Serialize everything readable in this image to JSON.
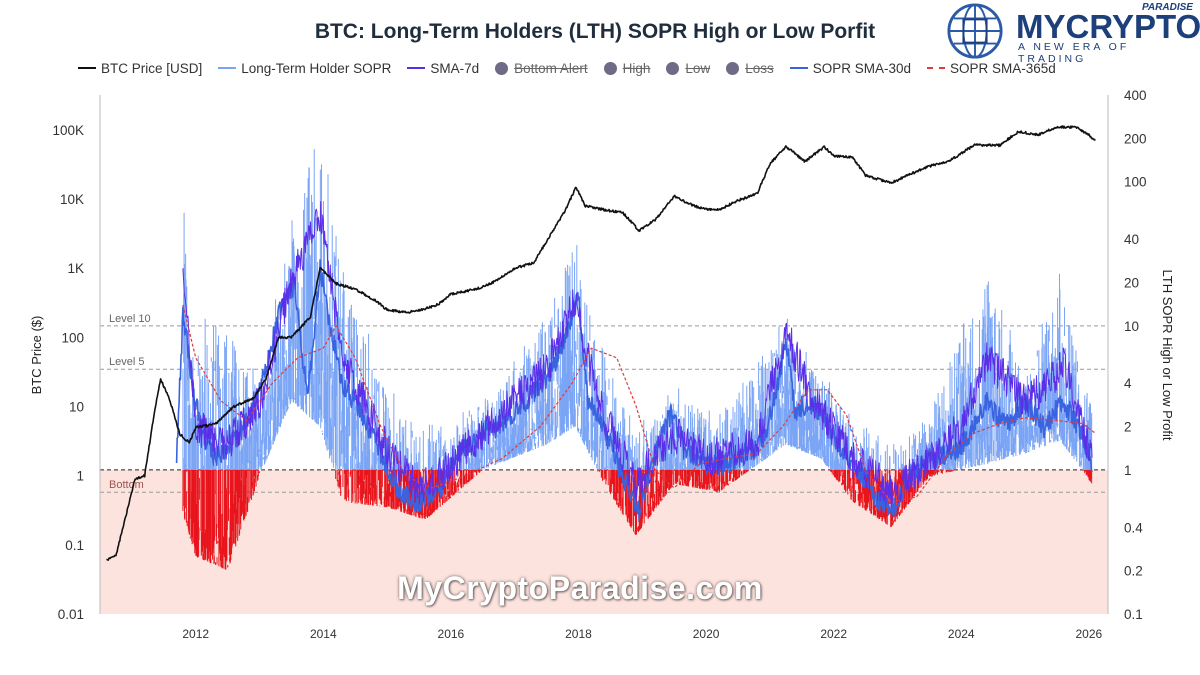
{
  "chart_data": {
    "type": "line",
    "title": "BTC: Long-Term Holders (LTH) SOPR High or Low Porfit",
    "ylabel_left": "BTC Price ($)",
    "ylabel_right": "LTH SOPR High or Low Profit",
    "y_left_scale": "log",
    "y_right_scale": "log",
    "ylim_left": [
      0.01,
      320000
    ],
    "ylim_right": [
      0.1,
      400
    ],
    "xlim": [
      2010.5,
      2026.3
    ],
    "x_ticks": [
      "2012",
      "2014",
      "2016",
      "2018",
      "2020",
      "2022",
      "2024",
      "2026"
    ],
    "y_left_ticks": [
      "0.01",
      "0.1",
      "1",
      "10",
      "100",
      "1K",
      "10K",
      "100K"
    ],
    "y_right_ticks": [
      "0.1",
      "0.2",
      "0.4",
      "1",
      "2",
      "4",
      "10",
      "20",
      "40",
      "100",
      "200",
      "400"
    ],
    "legend": [
      {
        "label": "BTC Price [USD]",
        "color": "#111111",
        "style": "solid",
        "enabled": true
      },
      {
        "label": "Long-Term Holder SOPR",
        "color": "#7aa4f5",
        "style": "solid",
        "enabled": true
      },
      {
        "label": "SMA-7d",
        "color": "#5b2ee8",
        "style": "solid",
        "enabled": true
      },
      {
        "label": "Bottom Alert",
        "color": "#6f6a86",
        "style": "dot",
        "enabled": false
      },
      {
        "label": "High",
        "color": "#6f6a86",
        "style": "dot",
        "enabled": false
      },
      {
        "label": "Low",
        "color": "#6f6a86",
        "style": "dot",
        "enabled": false
      },
      {
        "label": "Loss",
        "color": "#6f6a86",
        "style": "dot",
        "enabled": false
      },
      {
        "label": "SOPR SMA-30d",
        "color": "#3a63e0",
        "style": "solid",
        "enabled": true
      },
      {
        "label": "SOPR SMA-365d",
        "color": "#e23b3b",
        "style": "dashed",
        "enabled": true
      }
    ],
    "reference_lines": [
      {
        "label": "Level 10",
        "value": 10
      },
      {
        "label": "Level 5",
        "value": 5
      },
      {
        "label": "",
        "value": 1
      },
      {
        "label": "Bottom",
        "value": 0.7
      }
    ],
    "loss_zone": {
      "from": 0.1,
      "to": 1,
      "color": "#fde3de"
    },
    "series": [
      {
        "name": "BTC Price [USD]",
        "axis": "left",
        "x": [
          2010.6,
          2010.75,
          2010.9,
          2011.05,
          2011.2,
          2011.35,
          2011.45,
          2011.6,
          2011.75,
          2011.9,
          2012.0,
          2012.3,
          2012.6,
          2012.9,
          2013.1,
          2013.3,
          2013.5,
          2013.8,
          2013.95,
          2014.2,
          2014.5,
          2014.8,
          2015.0,
          2015.3,
          2015.6,
          2015.8,
          2016.0,
          2016.4,
          2016.7,
          2017.0,
          2017.3,
          2017.6,
          2017.8,
          2017.96,
          2018.1,
          2018.4,
          2018.7,
          2018.95,
          2019.2,
          2019.5,
          2019.8,
          2020.0,
          2020.2,
          2020.5,
          2020.8,
          2021.0,
          2021.25,
          2021.55,
          2021.85,
          2022.0,
          2022.3,
          2022.5,
          2022.9,
          2023.2,
          2023.5,
          2023.8,
          2024.2,
          2024.6,
          2024.9,
          2025.2,
          2025.5,
          2025.8,
          2026.0,
          2026.1
        ],
        "y": [
          0.06,
          0.07,
          0.25,
          0.9,
          1,
          8,
          25,
          12,
          4,
          3,
          5,
          5.5,
          10,
          13,
          25,
          100,
          100,
          200,
          1000,
          600,
          500,
          350,
          250,
          230,
          260,
          300,
          420,
          500,
          650,
          1000,
          1200,
          3500,
          7000,
          15000,
          8000,
          7000,
          6300,
          3500,
          5000,
          11000,
          8000,
          7200,
          7000,
          9500,
          12000,
          32000,
          58000,
          35000,
          57000,
          42000,
          40000,
          22000,
          17000,
          23000,
          30000,
          35000,
          60000,
          60000,
          95000,
          85000,
          110000,
          110000,
          85000,
          70000
        ]
      },
      {
        "name": "SOPR SMA-365d",
        "axis": "right",
        "x": [
          2011.8,
          2012.0,
          2012.4,
          2012.8,
          2013.2,
          2013.6,
          2014.0,
          2014.2,
          2014.5,
          2014.9,
          2015.3,
          2015.7,
          2016.2,
          2016.8,
          2017.4,
          2017.9,
          2018.2,
          2018.6,
          2018.9,
          2019.2,
          2019.5,
          2019.9,
          2020.3,
          2020.8,
          2021.2,
          2021.6,
          2021.9,
          2022.2,
          2022.5,
          2022.9,
          2023.3,
          2023.8,
          2024.2,
          2024.6,
          2025.0,
          2025.5,
          2025.9,
          2026.1
        ],
        "y": [
          14,
          6,
          3,
          2.2,
          4,
          6,
          7,
          10,
          6,
          2,
          0.9,
          0.75,
          0.9,
          1.2,
          2,
          4,
          7,
          6,
          2.8,
          1.0,
          0.75,
          1.1,
          1.2,
          1.3,
          2,
          3.6,
          3.6,
          2.4,
          1.0,
          0.6,
          0.65,
          1.3,
          1.8,
          2.1,
          2.3,
          2.2,
          2.1,
          1.8
        ]
      },
      {
        "name": "SOPR SMA-30d",
        "axis": "right",
        "x": [
          2011.7,
          2011.8,
          2011.95,
          2012.1,
          2012.3,
          2012.6,
          2012.9,
          2013.1,
          2013.3,
          2013.55,
          2013.75,
          2013.95,
          2014.1,
          2014.3,
          2014.6,
          2014.9,
          2015.2,
          2015.5,
          2015.8,
          2016.1,
          2016.5,
          2016.9,
          2017.3,
          2017.6,
          2017.9,
          2018.0,
          2018.15,
          2018.3,
          2018.5,
          2018.7,
          2018.95,
          2019.2,
          2019.45,
          2019.7,
          2020.0,
          2020.3,
          2020.6,
          2020.9,
          2021.1,
          2021.25,
          2021.4,
          2021.6,
          2021.9,
          2022.1,
          2022.4,
          2022.7,
          2022.95,
          2023.2,
          2023.5,
          2023.9,
          2024.2,
          2024.4,
          2024.7,
          2025.0,
          2025.3,
          2025.6,
          2025.9,
          2026.05
        ],
        "y": [
          1.2,
          12,
          4,
          1.8,
          1.2,
          1.6,
          2.5,
          5,
          12,
          20,
          3,
          25,
          10,
          4,
          2.5,
          1.3,
          0.7,
          0.6,
          0.7,
          1.3,
          1.8,
          2.2,
          3.5,
          5,
          12,
          15,
          3,
          2.5,
          1.5,
          0.9,
          0.5,
          1.3,
          2.5,
          1.4,
          1.1,
          1.1,
          1.3,
          1.6,
          3.5,
          8,
          2.5,
          3,
          2.2,
          1.4,
          1.0,
          0.6,
          0.55,
          0.9,
          1.2,
          1.3,
          2,
          3,
          2,
          3,
          2,
          3,
          1.8,
          1.1
        ]
      },
      {
        "name": "SMA-7d",
        "axis": "right",
        "x": [
          2011.8,
          2012.0,
          2012.5,
          2013.0,
          2013.5,
          2013.95,
          2014.3,
          2015.0,
          2015.5,
          2016.5,
          2017.5,
          2017.95,
          2018.3,
          2018.9,
          2019.5,
          2020.0,
          2020.8,
          2021.25,
          2021.7,
          2022.3,
          2022.9,
          2023.5,
          2024.0,
          2024.4,
          2025.0,
          2025.4,
          2025.6,
          2026.05
        ],
        "y": [
          30,
          2,
          1.5,
          3,
          20,
          60,
          6,
          1.4,
          0.7,
          1.8,
          5,
          15,
          3,
          0.8,
          1.8,
          1.2,
          1.5,
          9,
          3,
          1.2,
          0.7,
          1.2,
          2,
          6,
          3,
          4,
          6,
          1.2
        ]
      },
      {
        "name": "Long-Term Holder SOPR",
        "axis": "right",
        "envelope": [
          [
            2011.8,
            0.5,
            110
          ],
          [
            2012.0,
            0.25,
            10
          ],
          [
            2012.5,
            0.2,
            15
          ],
          [
            2013.0,
            0.9,
            4
          ],
          [
            2013.5,
            3,
            60
          ],
          [
            2013.95,
            2,
            330
          ],
          [
            2014.3,
            0.6,
            30
          ],
          [
            2015.0,
            0.55,
            4
          ],
          [
            2015.6,
            0.45,
            2
          ],
          [
            2016.5,
            1.0,
            3
          ],
          [
            2017.5,
            1.5,
            12
          ],
          [
            2017.95,
            2,
            40
          ],
          [
            2018.4,
            0.8,
            8
          ],
          [
            2018.9,
            0.35,
            2
          ],
          [
            2019.5,
            0.8,
            4
          ],
          [
            2020.2,
            0.7,
            2.5
          ],
          [
            2021.25,
            1.5,
            12
          ],
          [
            2021.8,
            1.2,
            5
          ],
          [
            2022.3,
            0.6,
            2.5
          ],
          [
            2022.9,
            0.4,
            1.5
          ],
          [
            2023.5,
            0.9,
            2.5
          ],
          [
            2024.4,
            1.1,
            28
          ],
          [
            2025.0,
            1.3,
            5
          ],
          [
            2025.55,
            1.6,
            25
          ],
          [
            2026.05,
            0.8,
            3
          ]
        ]
      }
    ]
  },
  "brand": {
    "name": "MYCRYPTO",
    "sup": "PARADISE",
    "tagline": "A NEW ERA OF TRADING"
  },
  "watermark": "MyCryptoParadise.com"
}
